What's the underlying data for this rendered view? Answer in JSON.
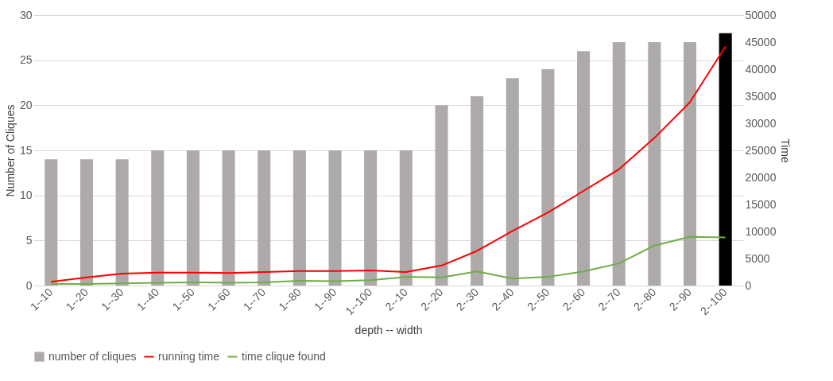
{
  "chart_data": {
    "type": "bar",
    "xlabel": "depth -- width",
    "ylabel": "Number of Cliques",
    "y2label": "Time",
    "categories": [
      "1--10",
      "1--20",
      "1--30",
      "1--40",
      "1--50",
      "1--60",
      "1--70",
      "1--80",
      "1--90",
      "1--100",
      "2--10",
      "2--20",
      "2--30",
      "2--40",
      "2--50",
      "2--60",
      "2--70",
      "2--80",
      "2--90",
      "2--100"
    ],
    "series": [
      {
        "name": "number of cliques",
        "color": "#aeaaaa",
        "colors": [
          "#aeaaaa",
          "#aeaaaa",
          "#aeaaaa",
          "#aeaaaa",
          "#aeaaaa",
          "#aeaaaa",
          "#aeaaaa",
          "#aeaaaa",
          "#aeaaaa",
          "#aeaaaa",
          "#aeaaaa",
          "#aeaaaa",
          "#aeaaaa",
          "#aeaaaa",
          "#aeaaaa",
          "#aeaaaa",
          "#aeaaaa",
          "#aeaaaa",
          "#aeaaaa",
          "#000000"
        ],
        "values": [
          14,
          14,
          14,
          15,
          15,
          15,
          15,
          15,
          15,
          15,
          15,
          20,
          21,
          23,
          24,
          26,
          27,
          27,
          27,
          28
        ]
      },
      {
        "name": "running time",
        "type": "line",
        "axis": "y2",
        "color": "#ff0000",
        "values": [
          700,
          1500,
          2200,
          2400,
          2400,
          2300,
          2500,
          2700,
          2700,
          2800,
          2500,
          3700,
          6400,
          10100,
          13500,
          17500,
          21500,
          27300,
          33900,
          44200
        ]
      },
      {
        "name": "time clique found",
        "type": "line",
        "axis": "y2",
        "color": "#70ad47",
        "values": [
          300,
          300,
          400,
          500,
          600,
          500,
          600,
          900,
          800,
          1000,
          1600,
          1500,
          2600,
          1300,
          1600,
          2600,
          4100,
          7400,
          9000,
          8900
        ]
      }
    ],
    "ylim": [
      0,
      30
    ],
    "yticks": [
      0,
      5,
      10,
      15,
      20,
      25,
      30
    ],
    "y2lim": [
      0,
      50000
    ],
    "y2ticks": [
      0,
      5000,
      10000,
      15000,
      20000,
      25000,
      30000,
      35000,
      40000,
      45000,
      50000
    ],
    "grid": "y",
    "legend": "bottom"
  }
}
